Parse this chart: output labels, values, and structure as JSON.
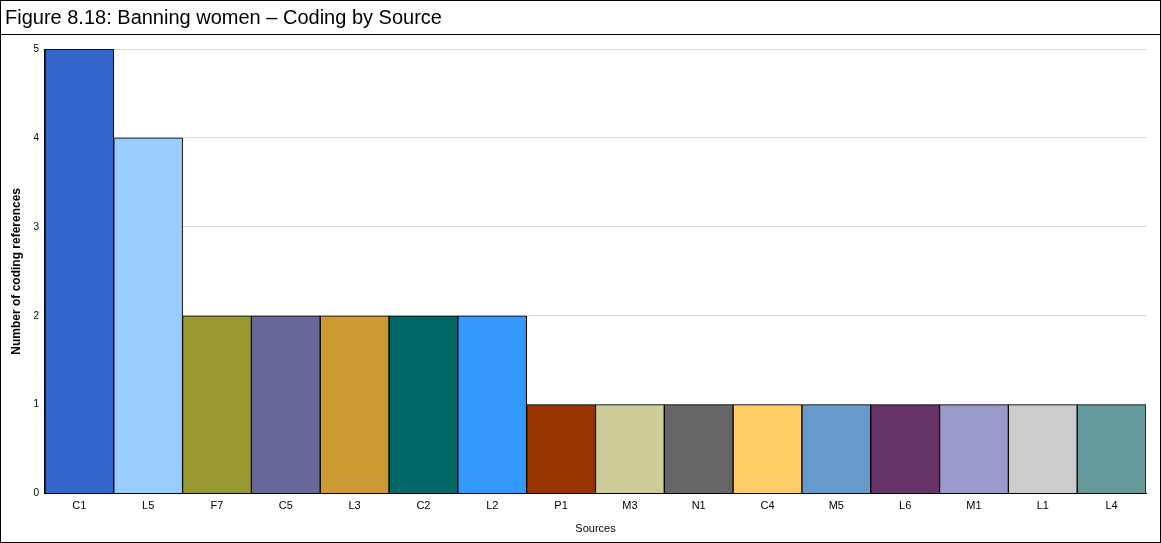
{
  "chart_data": {
    "type": "bar",
    "title": "Figure 8.18: Banning women – Coding by Source",
    "xlabel": "Sources",
    "ylabel": "Number of coding references",
    "categories": [
      "C1",
      "L5",
      "F7",
      "C5",
      "L3",
      "C2",
      "L2",
      "P1",
      "M3",
      "N1",
      "C4",
      "M5",
      "L6",
      "M1",
      "L1",
      "L4"
    ],
    "values": [
      5,
      4,
      2,
      2,
      2,
      2,
      2,
      1,
      1,
      1,
      1,
      1,
      1,
      1,
      1,
      1
    ],
    "colors": [
      "#3366cc",
      "#99ccff",
      "#999933",
      "#666699",
      "#cc9933",
      "#006666",
      "#3399ff",
      "#993300",
      "#cccc99",
      "#666666",
      "#ffcc66",
      "#6699cc",
      "#663366",
      "#9999cc",
      "#cccccc",
      "#669999"
    ],
    "ylim": [
      0,
      5
    ],
    "yticks": [
      0,
      1,
      2,
      3,
      4,
      5
    ],
    "grid": "y"
  }
}
